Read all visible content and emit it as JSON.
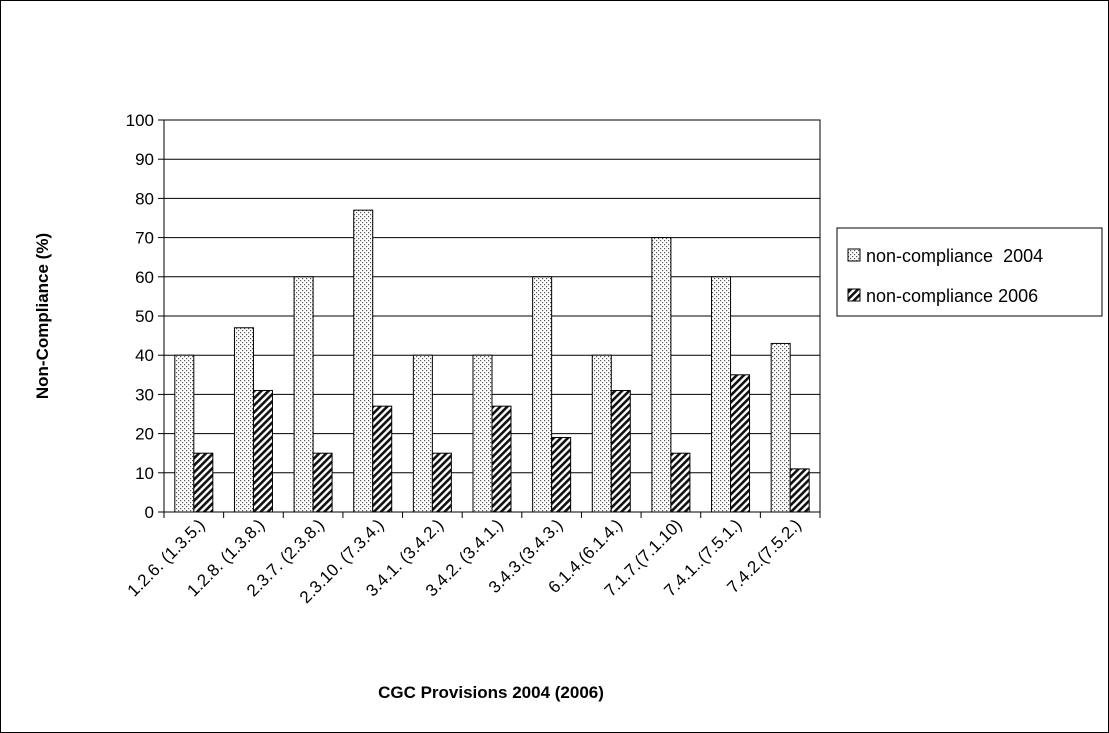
{
  "chart_data": {
    "type": "bar",
    "title": "",
    "xlabel": "CGC Provisions 2004 (2006)",
    "ylabel": "Non-Compliance (%)",
    "ylim": [
      0,
      100
    ],
    "yticks": [
      0,
      10,
      20,
      30,
      40,
      50,
      60,
      70,
      80,
      90,
      100
    ],
    "grid": "horizontal",
    "legend_position": "right",
    "categories": [
      "1.2.6. (1.3.5.)",
      "1.2.8. (1.3.8.)",
      "2.3.7. (2.3.8.)",
      "2.3.10. (7.3.4.)",
      "3.4.1. (3.4.2.)",
      "3.4.2. (3.4.1.)",
      "3.4.3.(3.4.3.)",
      "6.1.4.(6.1.4.)",
      "7.1.7.(7.1.10)",
      "7.4.1..(7.5.1.)",
      "7.4.2.(7.5.2.)"
    ],
    "series": [
      {
        "name": "non-compliance  2004",
        "pattern": "dotted",
        "values": [
          40,
          47,
          60,
          77,
          40,
          40,
          60,
          40,
          70,
          60,
          43
        ]
      },
      {
        "name": "non-compliance 2006",
        "pattern": "diagonal-hatch",
        "values": [
          15,
          31,
          15,
          27,
          15,
          27,
          19,
          31,
          15,
          35,
          11
        ]
      }
    ]
  }
}
